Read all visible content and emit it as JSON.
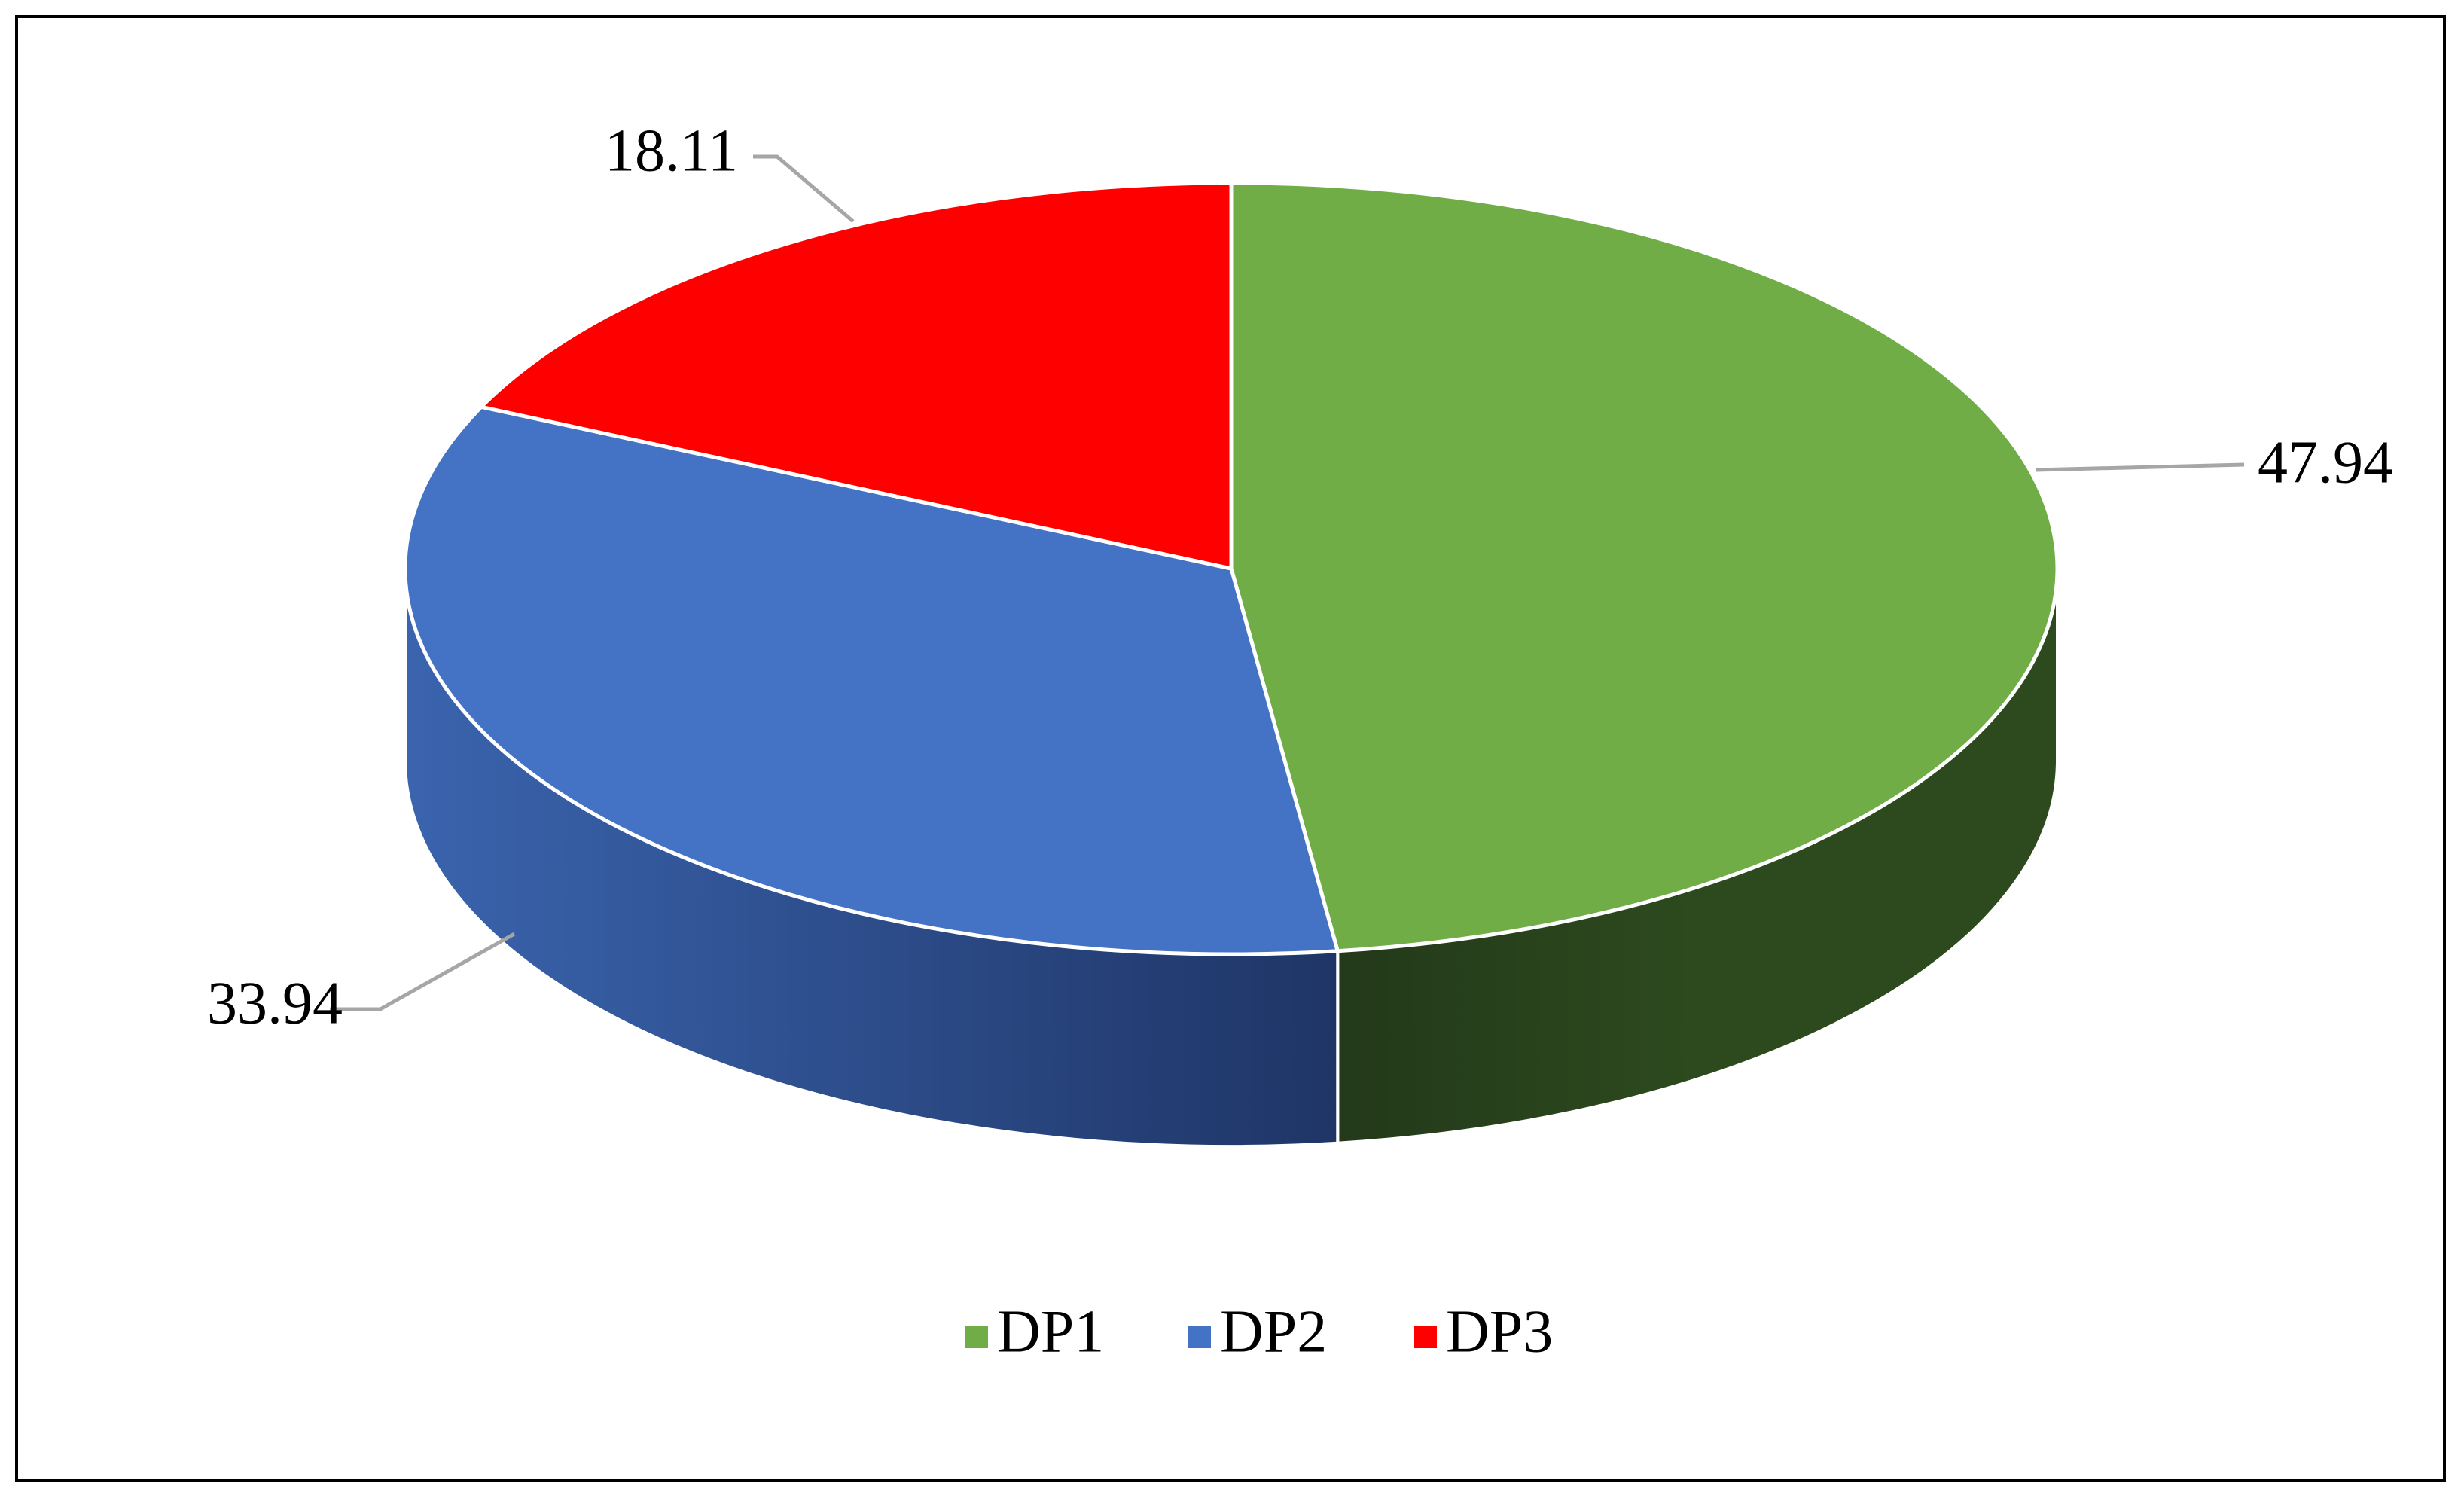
{
  "chart_data": {
    "type": "pie",
    "style": "3d",
    "categories": [
      "DP1",
      "DP2",
      "DP3"
    ],
    "values": [
      47.94,
      33.94,
      18.11
    ],
    "labels": [
      "47.94",
      "33.94",
      "18.11"
    ],
    "colors": [
      "#70AD47",
      "#4472C4",
      "#FF0000"
    ],
    "side_colors": [
      "#2D4A1E",
      "#2E4F8A",
      "#A00000"
    ],
    "title": "",
    "legend": {
      "position": "bottom",
      "entries": [
        "DP1",
        "DP2",
        "DP3"
      ]
    }
  }
}
